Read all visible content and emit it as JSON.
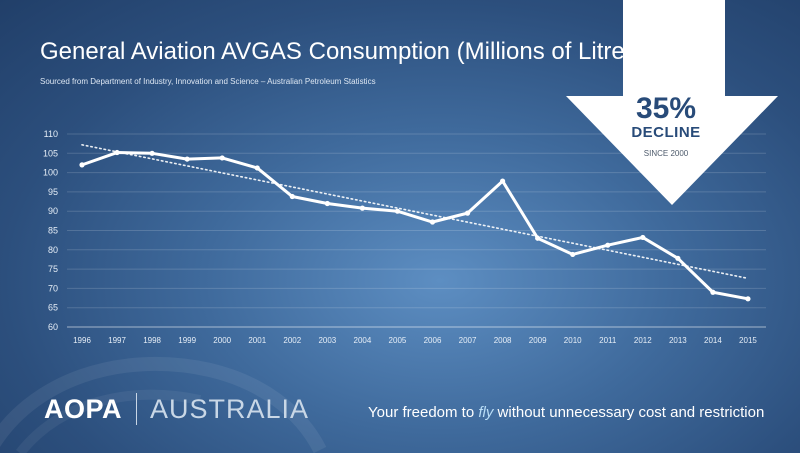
{
  "title": "General Aviation AVGAS Consumption (Millions of Litres)",
  "subtitle": "Sourced from Department of Industry, Innovation and Science – Australian Petroleum Statistics",
  "callout": {
    "percent": "35%",
    "word": "DECLINE",
    "since": "SINCE 2000",
    "arrow_color": "#ffffff",
    "text_color": "#284b79"
  },
  "footer": {
    "logo_main": "AOPA",
    "logo_secondary": "AUSTRALIA",
    "tagline_before": "Your freedom to ",
    "tagline_em": "fly",
    "tagline_after": " without unnecessary cost and restriction"
  },
  "chart_data": {
    "type": "line",
    "title": "General Aviation AVGAS Consumption (Millions of Litres)",
    "xlabel": "",
    "ylabel": "",
    "categories": [
      "1996",
      "1997",
      "1998",
      "1999",
      "2000",
      "2001",
      "2002",
      "2003",
      "2004",
      "2005",
      "2006",
      "2007",
      "2008",
      "2009",
      "2010",
      "2011",
      "2012",
      "2013",
      "2014",
      "2015"
    ],
    "series": [
      {
        "values": [
          102,
          105.2,
          105,
          103.5,
          103.8,
          101.2,
          93.8,
          92,
          90.8,
          90,
          87.2,
          89.5,
          97.8,
          83,
          78.8,
          81.2,
          83.2,
          77.8,
          69,
          67.3
        ]
      }
    ],
    "trendline": {
      "style": "dotted",
      "start": 107.2,
      "end": 72.6
    },
    "ylim": [
      60,
      110
    ],
    "yticks": [
      60,
      65,
      70,
      75,
      80,
      85,
      90,
      95,
      100,
      105,
      110
    ],
    "grid": true,
    "legend": "none",
    "line_color": "#ffffff"
  }
}
